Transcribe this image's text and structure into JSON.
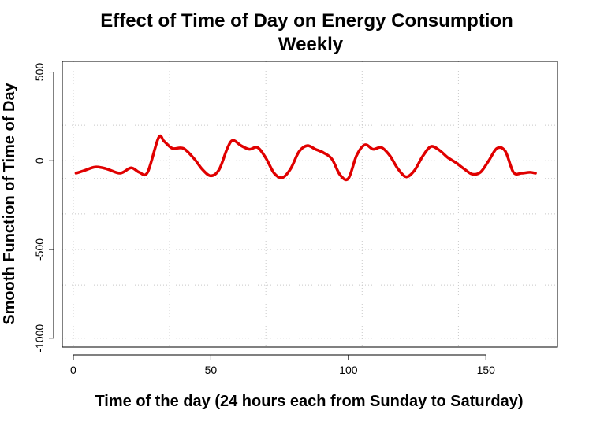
{
  "chart_data": {
    "type": "line",
    "title": "Effect of Time of Day on Energy Consumption",
    "subtitle": "Weekly",
    "xlabel": "Time of the day (24 hours each from Sunday to Saturday)",
    "ylabel": "Smooth Function of Time of Day",
    "xlim": [
      -4,
      176
    ],
    "ylim": [
      -1050,
      560
    ],
    "x_ticks": [
      0,
      50,
      100,
      150
    ],
    "x_tick_labels": [
      "0",
      "50",
      "100",
      "150"
    ],
    "y_ticks": [
      -1000,
      -500,
      0,
      500
    ],
    "y_tick_labels": [
      "-1000",
      "-500",
      "0",
      "500"
    ],
    "x_grid": [
      0,
      35,
      70,
      105,
      140
    ],
    "y_grid": [
      -1000,
      -700,
      -500,
      -300,
      -100,
      0,
      200,
      500
    ],
    "grid": true,
    "line_color": "#e00000",
    "series": [
      {
        "x": [
          1,
          4,
          8,
          12,
          17,
          21,
          24,
          27,
          31,
          33,
          36,
          40,
          44,
          47,
          50,
          53,
          56,
          58,
          61,
          64,
          67,
          70,
          73,
          76,
          79,
          82,
          85,
          88,
          91,
          94,
          97,
          100,
          103,
          106,
          109,
          112,
          115,
          118,
          121,
          124,
          127,
          130,
          133,
          136,
          139,
          142,
          145,
          148,
          151,
          154,
          157,
          160,
          163,
          166,
          168
        ],
        "values": [
          -70,
          -55,
          -35,
          -45,
          -70,
          -40,
          -65,
          -65,
          130,
          110,
          70,
          70,
          10,
          -50,
          -85,
          -50,
          70,
          115,
          85,
          65,
          75,
          15,
          -70,
          -95,
          -45,
          50,
          85,
          65,
          45,
          10,
          -80,
          -100,
          30,
          90,
          65,
          75,
          30,
          -45,
          -90,
          -55,
          25,
          80,
          60,
          20,
          -10,
          -45,
          -75,
          -65,
          0,
          70,
          55,
          -65,
          -70,
          -65,
          -70
        ]
      }
    ]
  }
}
